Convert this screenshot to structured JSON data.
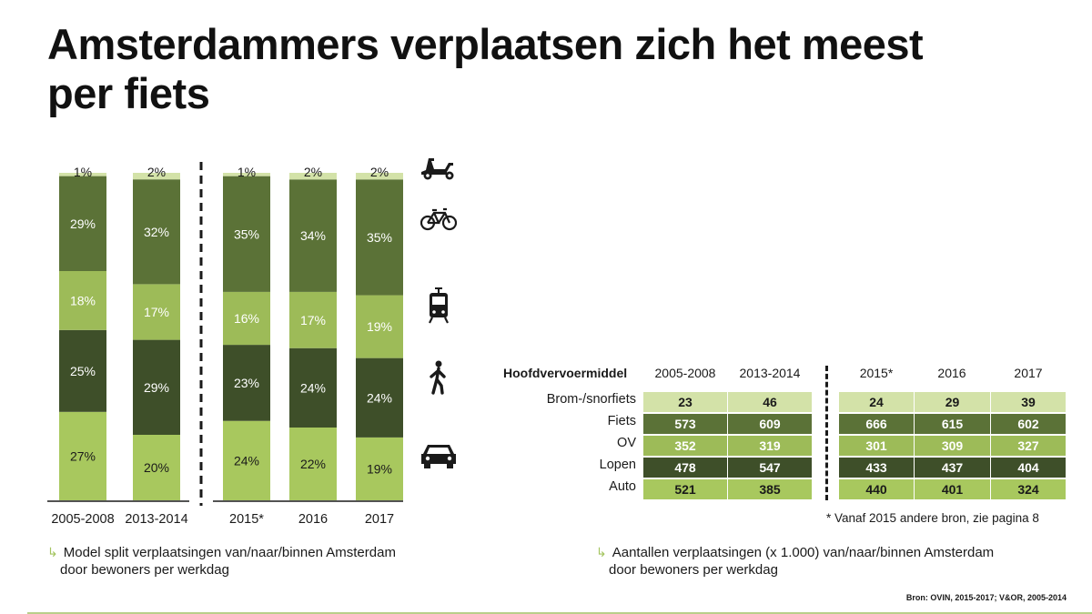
{
  "title_line1": "Amsterdammers verplaatsen zich het meest",
  "title_line2": "per fiets",
  "colors": {
    "brom": "#d3e2a8",
    "fiets": "#5b7237",
    "ov": "#9dbb58",
    "lopen": "#3e4f29",
    "auto": "#a8c85e",
    "accent": "#a3c45f"
  },
  "icons": [
    "scooter-icon",
    "bicycle-icon",
    "tram-icon",
    "pedestrian-icon",
    "car-icon"
  ],
  "chart_data": {
    "type": "bar",
    "stacked": true,
    "title": "Model split verplaatsingen van/naar/binnen Amsterdam door bewoners per werkdag",
    "categories": [
      "2005-2008",
      "2013-2014",
      "2015*",
      "2016",
      "2017"
    ],
    "series": [
      {
        "name": "Auto",
        "values": [
          27,
          20,
          24,
          22,
          19
        ],
        "labels": [
          "27%",
          "20%",
          "24%",
          "22%",
          "19%"
        ]
      },
      {
        "name": "Lopen",
        "values": [
          25,
          29,
          23,
          24,
          24
        ],
        "labels": [
          "25%",
          "29%",
          "23%",
          "24%",
          "24%"
        ]
      },
      {
        "name": "OV",
        "values": [
          18,
          17,
          16,
          17,
          19
        ],
        "labels": [
          "18%",
          "17%",
          "16%",
          "17%",
          "19%"
        ]
      },
      {
        "name": "Fiets",
        "values": [
          29,
          32,
          35,
          34,
          35
        ],
        "labels": [
          "29%",
          "32%",
          "35%",
          "34%",
          "35%"
        ]
      },
      {
        "name": "Brom-/snorfiets",
        "values": [
          1,
          2,
          1,
          2,
          2
        ],
        "labels": [
          "1%",
          "2%",
          "1%",
          "2%",
          "2%"
        ]
      }
    ],
    "ylim": [
      0,
      100
    ]
  },
  "chart_caption": {
    "line1": "Model split verplaatsingen van/naar/binnen Amsterdam",
    "line2": "door bewoners per werkdag"
  },
  "table": {
    "header_label": "Hoofdvervoermiddel",
    "columns": [
      "2005-2008",
      "2013-2014",
      "2015*",
      "2016",
      "2017"
    ],
    "rows": [
      {
        "label": "Brom-/snorfiets",
        "values": [
          "23",
          "46",
          "24",
          "29",
          "39"
        ]
      },
      {
        "label": "Fiets",
        "values": [
          "573",
          "609",
          "666",
          "615",
          "602"
        ]
      },
      {
        "label": "OV",
        "values": [
          "352",
          "319",
          "301",
          "309",
          "327"
        ]
      },
      {
        "label": "Lopen",
        "values": [
          "478",
          "547",
          "433",
          "437",
          "404"
        ]
      },
      {
        "label": "Auto",
        "values": [
          "521",
          "385",
          "440",
          "401",
          "324"
        ]
      }
    ]
  },
  "table_footnote": "* Vanaf 2015 andere bron, zie pagina 8",
  "table_caption": {
    "line1": "Aantallen verplaatsingen (x 1.000) van/naar/binnen Amsterdam",
    "line2": "door bewoners per werkdag"
  },
  "source": "Bron: OVIN, 2015-2017; V&OR, 2005-2014"
}
